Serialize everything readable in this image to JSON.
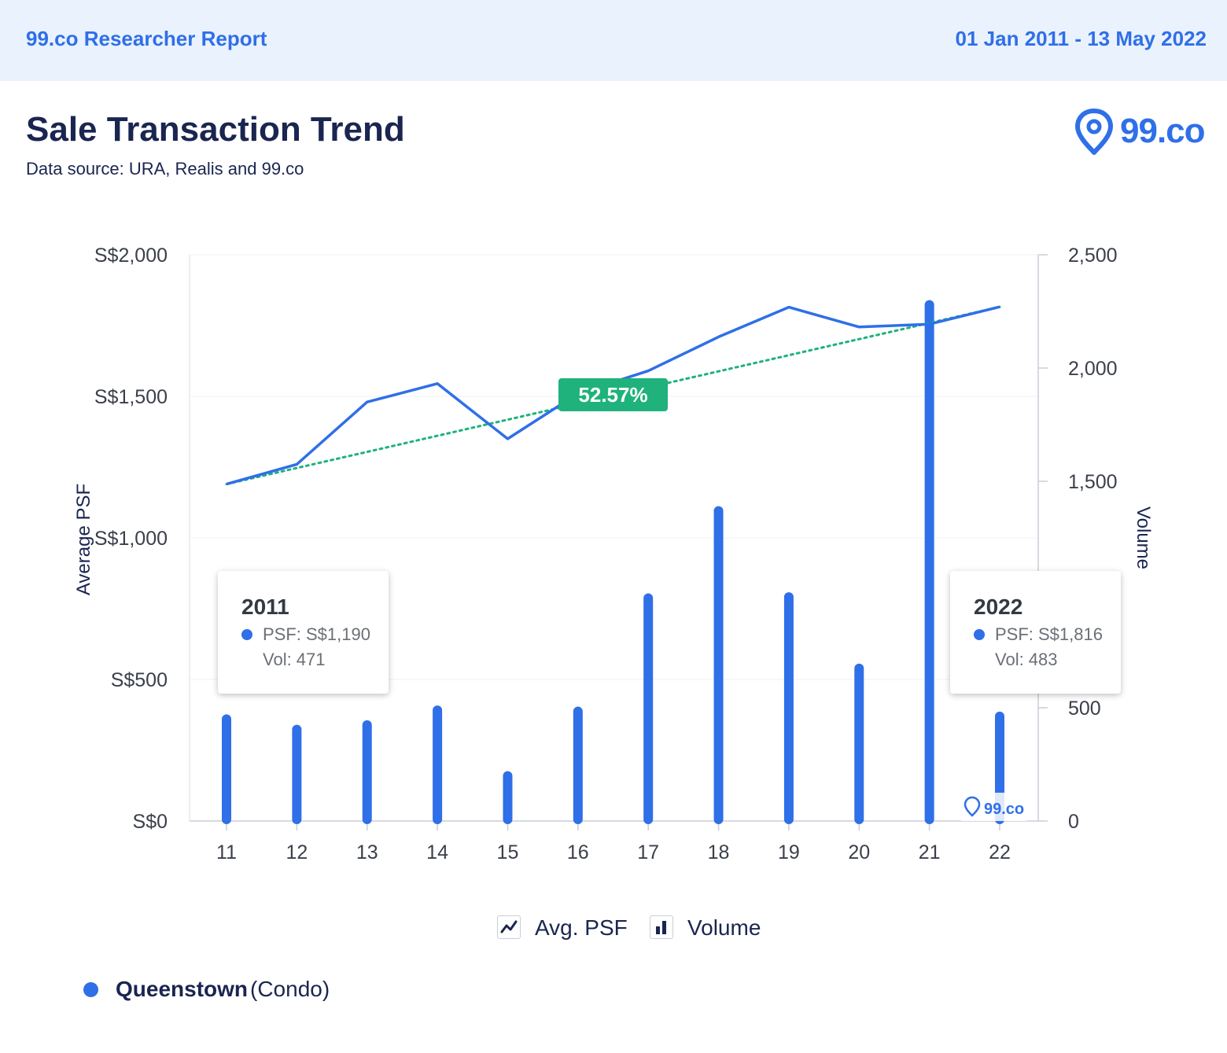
{
  "header": {
    "brand": "99.co Researcher Report",
    "date_range": "01 Jan 2011 - 13 May 2022"
  },
  "title": "Sale Transaction Trend",
  "subtitle": "Data source: URA, Realis and 99.co",
  "logo_text": "99.co",
  "watermark_text": "99.co",
  "colors": {
    "primary": "#2f6fe8",
    "trend": "#1fb27c",
    "navy": "#1a2550",
    "header_bg": "#eaf2fd"
  },
  "tooltips": [
    {
      "year": "2011",
      "psf": "PSF: S$1,190",
      "vol": "Vol: 471"
    },
    {
      "year": "2022",
      "psf": "PSF: S$1,816",
      "vol": "Vol: 483"
    }
  ],
  "legend": [
    {
      "icon": "line-chart-icon",
      "label": "Avg. PSF"
    },
    {
      "icon": "bar-chart-icon",
      "label": "Volume"
    }
  ],
  "location": {
    "name": "Queenstown",
    "type": "(Condo)"
  },
  "chart_data": {
    "type": "bar",
    "categories": [
      "11",
      "12",
      "13",
      "14",
      "15",
      "16",
      "17",
      "18",
      "19",
      "20",
      "21",
      "22"
    ],
    "series": [
      {
        "name": "Avg. PSF",
        "type": "line",
        "axis": "left",
        "values": [
          1190,
          1260,
          1480,
          1545,
          1350,
          1510,
          1590,
          1710,
          1815,
          1745,
          1755,
          1816
        ]
      },
      {
        "name": "Volume",
        "type": "bar",
        "axis": "right",
        "values": [
          471,
          425,
          445,
          510,
          220,
          505,
          1005,
          1390,
          1010,
          695,
          2300,
          483
        ]
      }
    ],
    "trend": {
      "label": "52.57%",
      "start": 1190,
      "end": 1816
    },
    "y_left": {
      "label": "Average PSF",
      "ylim": [
        0,
        2000
      ],
      "ticks": [
        "S$0",
        "S$500",
        "S$1,000",
        "S$1,500",
        "S$2,000"
      ]
    },
    "y_right": {
      "label": "Volume",
      "ylim": [
        0,
        2500
      ],
      "ticks": [
        "0",
        "500",
        "1,000",
        "1,500",
        "2,000",
        "2,500"
      ]
    },
    "grid": true,
    "legend_position": "bottom"
  }
}
